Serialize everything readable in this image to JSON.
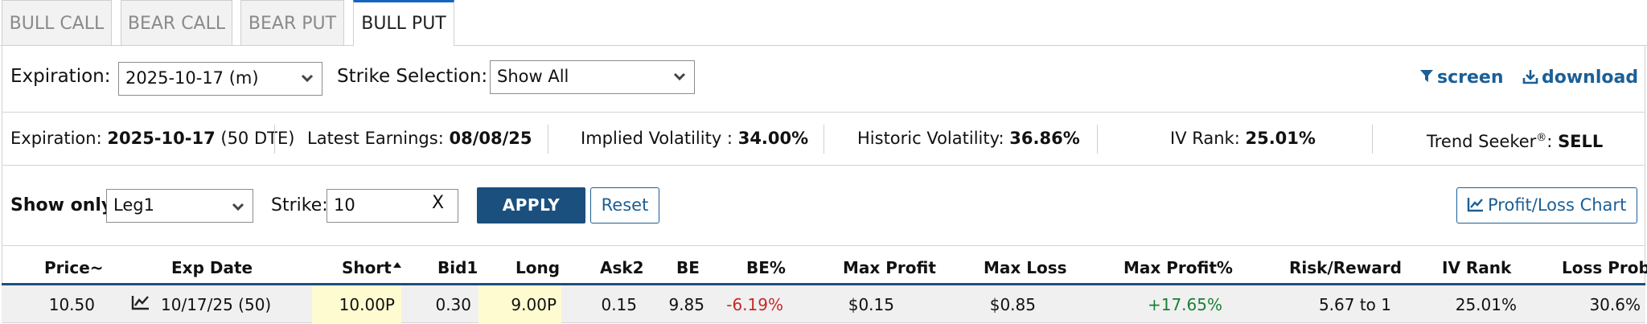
{
  "tabs": [
    "BULL CALL",
    "BEAR CALL",
    "BEAR PUT",
    "BULL PUT"
  ],
  "active_tab": "BULL PUT",
  "controls": {
    "expiration_label": "Expiration:",
    "expiration_value": "2025-10-17 (m)",
    "strike_selection_label": "Strike Selection:",
    "strike_selection_value": "Show All",
    "screen_label": "screen",
    "download_label": "download"
  },
  "info": {
    "expiration_label": "Expiration:",
    "expiration_value": "2025-10-17",
    "expiration_dte": "(50 DTE)",
    "earnings_label": "Latest Earnings:",
    "earnings_value": "08/08/25",
    "iv_label": "Implied Volatility :",
    "iv_value": "34.00%",
    "hv_label": "Historic Volatility:",
    "hv_value": "36.86%",
    "ivrank_label": "IV Rank:",
    "ivrank_value": "25.01%",
    "trend_label": "Trend Seeker",
    "trend_reg": "®",
    "trend_colon": ":",
    "trend_value": "SELL"
  },
  "filter": {
    "show_only_label": "Show only:",
    "show_only_value": "Leg1",
    "strike_label": "Strike:",
    "strike_value": "10",
    "clear_label": "X",
    "apply_label": "APPLY",
    "reset_label": "Reset",
    "chart_label": "Profit/Loss Chart"
  },
  "table": {
    "headers": [
      "Price~",
      "Exp Date",
      "Short",
      "Bid1",
      "Long",
      "Ask2",
      "BE",
      "BE%",
      "Max Profit",
      "Max Loss",
      "Max Profit%",
      "Risk/Reward",
      "IV Rank",
      "Loss Prob"
    ],
    "rows": [
      {
        "price": "10.50",
        "exp_date": "10/17/25 (50)",
        "short": "10.00P",
        "bid1": "0.30",
        "long": "9.00P",
        "ask2": "0.15",
        "be": "9.85",
        "be_pct": "-6.19%",
        "max_profit": "$0.15",
        "max_loss": "$0.85",
        "max_profit_pct": "+17.65%",
        "risk_reward": "5.67 to 1",
        "iv_rank": "25.01%",
        "loss_prob": "30.6%"
      }
    ]
  },
  "colors": {
    "accent": "#1b5f96",
    "apply_bg": "#1b4f7e",
    "active_tab_top": "#1565c0",
    "highlight": "#fffbd1",
    "positive": "#1a7f37",
    "negative": "#c62828"
  }
}
